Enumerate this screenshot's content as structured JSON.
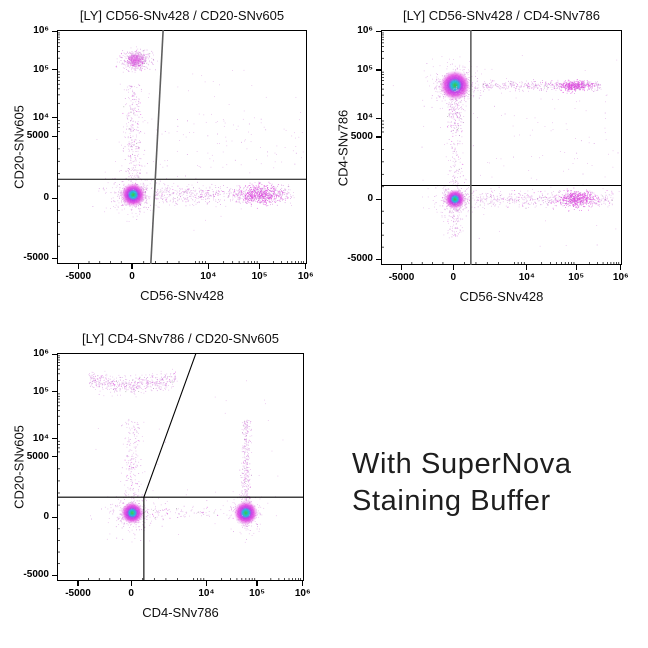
{
  "page": {
    "background": "#ffffff"
  },
  "caption": {
    "line1": "With SuperNova",
    "line2": "Staining Buffer"
  },
  "palette": {
    "dot_light": "#e0abe6",
    "dot_mid": "#cd80d8",
    "dot_magenta": "#df44de",
    "dot_dark": "#a258b2",
    "dot_gray": "#9a9a9a",
    "core_green": "#1fd41f",
    "core_cyan": "#00c6e0",
    "core_magenta": "#c030e8",
    "core_pink": "#e34ae0",
    "gate_gray": "#5f5f5f",
    "gate_black": "#000000"
  },
  "chart_data": {
    "type": "scatter",
    "scale": "biexponential",
    "grid": false,
    "axes": {
      "x_anchors": [
        [
          -7000,
          0
        ],
        [
          -5000,
          0.085
        ],
        [
          0,
          0.3
        ],
        [
          5000,
          0.535
        ],
        [
          10000,
          0.605
        ],
        [
          100000,
          0.81
        ],
        [
          1000000,
          0.995
        ],
        [
          1150000,
          1
        ]
      ],
      "y_anchors": [
        [
          -6000,
          1
        ],
        [
          -5000,
          0.975
        ],
        [
          0,
          0.72
        ],
        [
          5000,
          0.455
        ],
        [
          10000,
          0.375
        ],
        [
          100000,
          0.17
        ],
        [
          1000000,
          0.005
        ],
        [
          1150000,
          0
        ]
      ],
      "x_ticks": [
        {
          "v": -5000,
          "label": "-5000"
        },
        {
          "v": 0,
          "label": "0"
        },
        {
          "v": 10000,
          "label": "10⁴"
        },
        {
          "v": 100000,
          "label": "10⁵"
        },
        {
          "v": 1000000,
          "label": "10⁶"
        }
      ],
      "y_ticks": [
        {
          "v": 1000000,
          "label": "10⁶"
        },
        {
          "v": 100000,
          "label": "10⁵"
        },
        {
          "v": 10000,
          "label": "10⁴"
        },
        {
          "v": 5000,
          "label": "5000"
        },
        {
          "v": 0,
          "label": "0"
        },
        {
          "v": -5000,
          "label": "-5000"
        }
      ],
      "minor_ticks": [
        -4000,
        -3000,
        -2000,
        -1000,
        1000,
        2000,
        3000,
        4000,
        6000,
        7000,
        8000,
        9000,
        20000,
        30000,
        40000,
        50000,
        60000,
        70000,
        80000,
        90000,
        200000,
        300000,
        400000,
        500000,
        600000,
        700000,
        800000,
        900000
      ]
    },
    "plots": [
      {
        "title": "[LY] CD56-SNv428  /  CD20-SNv605",
        "xlabel": "CD56-SNv428",
        "ylabel": "CD20-SNv605",
        "gates": [
          {
            "type": "hline",
            "y": 1550,
            "color": "#000000",
            "width": 1.1
          },
          {
            "type": "tilted_v",
            "x_bottom": 1600,
            "x_top": 2650,
            "color": "#5f5f5f",
            "width": 1.6
          }
        ],
        "populations": [
          {
            "type": "blob",
            "name": "cd56neg-cd20neg",
            "x": 100,
            "y": 300,
            "sx": 520,
            "sy": 380,
            "n": 750,
            "core_r": 12,
            "halo": 260
          },
          {
            "type": "blob",
            "name": "b-cells-cd20pos",
            "x": 300,
            "y": 180000,
            "sx": 620,
            "sy_dex": 0.13,
            "n": 480,
            "hot_core_r": 8
          },
          {
            "type": "smear",
            "name": "cd20-vertical-smear",
            "x1": 100,
            "y1": 1500,
            "x2": 100,
            "y2": 50000,
            "jx": 420,
            "n": 300
          },
          {
            "type": "smear",
            "name": "nk-cells-cd56pos",
            "x1": 1800,
            "y1": 350,
            "x2": 550000,
            "y2": 350,
            "jy": 380,
            "n": 620,
            "hot": {
              "t0": 0.6,
              "t1": 0.92,
              "n": 520
            }
          },
          {
            "type": "field",
            "name": "sparse-mid",
            "x1": 1500,
            "x2": 900000,
            "y1": 2500,
            "y2": 15000,
            "n": 90
          },
          {
            "type": "field",
            "name": "noise",
            "x1": -3500,
            "x2": 900000,
            "y1": -3000,
            "y2": 120000,
            "n": 55
          }
        ]
      },
      {
        "title": "[LY] CD56-SNv428  /  CD4-SNv786",
        "xlabel": "CD56-SNv428",
        "ylabel": "CD4-SNv786",
        "gates": [
          {
            "type": "hline",
            "y": 1100,
            "color": "#000000",
            "width": 1.1
          },
          {
            "type": "vline",
            "x": 1550,
            "color": "#5f5f5f",
            "width": 1.6
          }
        ],
        "populations": [
          {
            "type": "blob",
            "name": "cd4-t-cells",
            "x": 150,
            "y": 48000,
            "sx": 560,
            "sy_dex": 0.1,
            "n": 950,
            "core_r": 15,
            "halo": 300
          },
          {
            "type": "smear",
            "name": "cd4-tail",
            "x1": 150,
            "y1": 45000,
            "x2": 150,
            "y2": 6000,
            "jx": 420,
            "n": 140
          },
          {
            "type": "blob",
            "name": "cd4neg",
            "x": 150,
            "y": 0,
            "sx": 470,
            "sy": 320,
            "n": 550,
            "core_r": 10,
            "halo": 200
          },
          {
            "type": "smear",
            "name": "cd56pos-cd4dim",
            "x1": 2500,
            "y1": 48000,
            "x2": 350000,
            "y2": 48000,
            "jy_dex": 0.05,
            "n": 420,
            "hot": {
              "t0": 0.62,
              "t1": 0.93,
              "n": 380
            }
          },
          {
            "type": "smear",
            "name": "nk-cells",
            "x1": 2000,
            "y1": 50,
            "x2": 700000,
            "y2": 50,
            "jy": 320,
            "n": 520,
            "hot": {
              "t0": 0.58,
              "t1": 0.88,
              "n": 480
            }
          },
          {
            "type": "smear",
            "name": "vertical-mid",
            "x1": 150,
            "y1": 1200,
            "x2": 150,
            "y2": 28000,
            "jx": 380,
            "n": 150
          },
          {
            "type": "smear",
            "name": "vertical-low",
            "x1": 150,
            "y1": -3200,
            "x2": 150,
            "y2": -300,
            "jx": 360,
            "n": 120
          },
          {
            "type": "field",
            "name": "sparse-mid",
            "x1": 1500,
            "x2": 900000,
            "y1": 1500,
            "y2": 30000,
            "n": 60
          },
          {
            "type": "field",
            "name": "noise",
            "x1": -3500,
            "x2": 900000,
            "y1": -4000,
            "y2": 300000,
            "n": 45
          }
        ]
      },
      {
        "title": "[LY] CD4-SNv786  /  CD20-SNv605",
        "xlabel": "CD4-SNv786",
        "ylabel": "CD20-SNv605",
        "gates": [
          {
            "type": "hline",
            "y": 1650,
            "color": "#000000",
            "width": 1.1
          },
          {
            "type": "segment",
            "x1": 1100,
            "y1": -6000,
            "x2": 1100,
            "y2": 1650,
            "color": "#000000",
            "width": 1.1
          },
          {
            "type": "segment",
            "x1": 1100,
            "y1": 1650,
            "x2": 6600,
            "y2": 1150000,
            "color": "#000000",
            "width": 1.1
          }
        ],
        "populations": [
          {
            "type": "blob",
            "name": "cd4neg-cd20neg",
            "x": 100,
            "y": 350,
            "sx": 500,
            "sy": 350,
            "n": 650,
            "core_r": 11,
            "halo": 220
          },
          {
            "type": "blob",
            "name": "cd4-t-cells",
            "x": 60000,
            "y": 350,
            "sx_dex": 0.07,
            "sy": 350,
            "n": 700,
            "core_r": 12,
            "halo": 220
          },
          {
            "type": "smear",
            "name": "b-cells-cloud",
            "x1": -4000,
            "y1": 190000,
            "x2": 3800,
            "y2": 190000,
            "jy_dex": 0.12,
            "n": 520,
            "bow": -0.03
          },
          {
            "type": "smear",
            "name": "vertical-neg",
            "x1": 100,
            "y1": 1200,
            "x2": 100,
            "y2": 25000,
            "jx": 400,
            "n": 190
          },
          {
            "type": "smear",
            "name": "vertical-cd4",
            "x1": 60000,
            "y1": 1200,
            "x2": 60000,
            "y2": 25000,
            "jx_dex": 0.045,
            "n": 300
          },
          {
            "type": "smear",
            "name": "horizontal-bridge",
            "x1": 1500,
            "y1": 350,
            "x2": 35000,
            "y2": 350,
            "jy": 300,
            "n": 100
          },
          {
            "type": "field",
            "name": "noise",
            "x1": -4000,
            "x2": 900000,
            "y1": -2000,
            "y2": 250000,
            "n": 45
          }
        ]
      }
    ]
  }
}
